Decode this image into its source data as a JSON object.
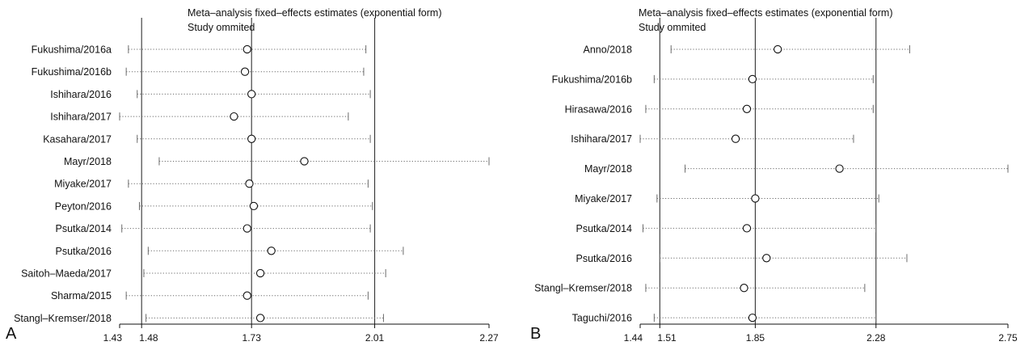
{
  "chart_data": [
    {
      "type": "forest",
      "panel_label": "A",
      "title": "Meta–analysis fixed–effects estimates (exponential form)",
      "subtitle": "Study ommited",
      "xlim": [
        1.43,
        2.27
      ],
      "xticks": [
        "1.43",
        "1.48",
        "1.73",
        "2.01",
        "2.27"
      ],
      "reference_lines": [
        1.48,
        1.73,
        2.01
      ],
      "studies": [
        {
          "name": "Fukushima/2016a",
          "estimate": 1.72,
          "lower": 1.45,
          "upper": 1.99
        },
        {
          "name": "Fukushima/2016b",
          "estimate": 1.715,
          "lower": 1.445,
          "upper": 1.985
        },
        {
          "name": "Ishihara/2016",
          "estimate": 1.73,
          "lower": 1.47,
          "upper": 2.0
        },
        {
          "name": "Ishihara/2017",
          "estimate": 1.69,
          "lower": 1.43,
          "upper": 1.95
        },
        {
          "name": "Kasahara/2017",
          "estimate": 1.73,
          "lower": 1.47,
          "upper": 2.0
        },
        {
          "name": "Mayr/2018",
          "estimate": 1.85,
          "lower": 1.52,
          "upper": 2.27
        },
        {
          "name": "Miyake/2017",
          "estimate": 1.725,
          "lower": 1.45,
          "upper": 1.995
        },
        {
          "name": "Peyton/2016",
          "estimate": 1.735,
          "lower": 1.475,
          "upper": 2.005
        },
        {
          "name": "Psutka/2014",
          "estimate": 1.72,
          "lower": 1.435,
          "upper": 2.0
        },
        {
          "name": "Psutka/2016",
          "estimate": 1.775,
          "lower": 1.495,
          "upper": 2.075
        },
        {
          "name": "Saitoh–Maeda/2017",
          "estimate": 1.75,
          "lower": 1.485,
          "upper": 2.035
        },
        {
          "name": "Sharma/2015",
          "estimate": 1.72,
          "lower": 1.445,
          "upper": 1.995
        },
        {
          "name": "Stangl–Kremser/2018",
          "estimate": 1.75,
          "lower": 1.49,
          "upper": 2.03
        }
      ]
    },
    {
      "type": "forest",
      "panel_label": "B",
      "title": "Meta–analysis fixed–effects estimates (exponential form)",
      "subtitle": "Study ommited",
      "xlim": [
        1.44,
        2.75
      ],
      "xticks": [
        "1.44",
        "1.51",
        "1.85",
        "2.28",
        "2.75"
      ],
      "reference_lines": [
        1.51,
        1.85,
        2.28
      ],
      "studies": [
        {
          "name": "Anno/2018",
          "estimate": 1.93,
          "lower": 1.55,
          "upper": 2.4
        },
        {
          "name": "Fukushima/2016b",
          "estimate": 1.84,
          "lower": 1.49,
          "upper": 2.27
        },
        {
          "name": "Hirasawa/2016",
          "estimate": 1.82,
          "lower": 1.46,
          "upper": 2.27
        },
        {
          "name": "Ishihara/2017",
          "estimate": 1.78,
          "lower": 1.44,
          "upper": 2.2
        },
        {
          "name": "Mayr/2018",
          "estimate": 2.15,
          "lower": 1.6,
          "upper": 2.75
        },
        {
          "name": "Miyake/2017",
          "estimate": 1.85,
          "lower": 1.5,
          "upper": 2.29
        },
        {
          "name": "Psutka/2014",
          "estimate": 1.82,
          "lower": 1.45,
          "upper": 2.28
        },
        {
          "name": "Psutka/2016",
          "estimate": 1.89,
          "lower": 1.51,
          "upper": 2.39
        },
        {
          "name": "Stangl–Kremser/2018",
          "estimate": 1.81,
          "lower": 1.46,
          "upper": 2.24
        },
        {
          "name": "Taguchi/2016",
          "estimate": 1.84,
          "lower": 1.49,
          "upper": 2.28
        }
      ]
    }
  ],
  "colors": {
    "ink": "#111111",
    "ci_line": "#6b6b6b",
    "ref_line": "#333333",
    "background": "#ffffff"
  }
}
